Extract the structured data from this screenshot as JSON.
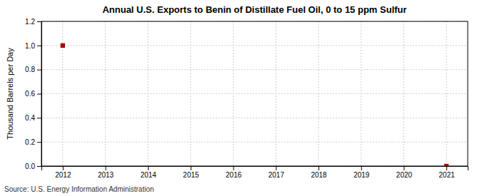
{
  "chart_data": {
    "type": "scatter",
    "title": "Annual U.S. Exports to Benin of Distillate Fuel Oil, 0 to 15 ppm Sulfur",
    "y_label": "Thousand Barrels per Day",
    "annotations": [
      "Source: U.S. Energy Information Administration"
    ],
    "x": [
      2012,
      2021
    ],
    "values": [
      1.0,
      0.0
    ],
    "color": "#aa0000",
    "marker": "square",
    "xlim": [
      2011.5,
      2021.5
    ],
    "ylim": [
      0.0,
      1.2
    ],
    "xticks": [
      2012,
      2013,
      2014,
      2015,
      2016,
      2017,
      2018,
      2019,
      2020,
      2021
    ],
    "yticks": [
      {
        "value": 0.0,
        "label": "0.0"
      },
      0.2,
      0.4,
      0.6,
      0.8,
      {
        "value": 1.0,
        "label": "1.0"
      },
      1.2
    ],
    "grid": true
  }
}
